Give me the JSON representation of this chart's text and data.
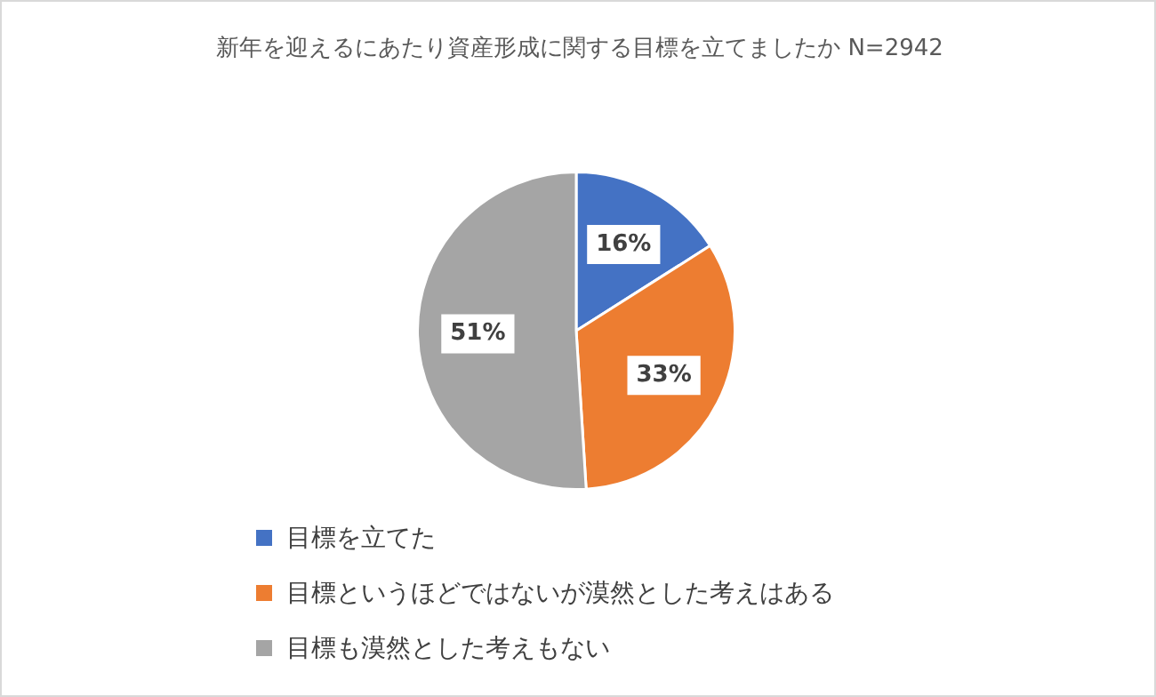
{
  "chart_data": {
    "type": "pie",
    "title": "新年を迎えるにあたり資産形成に関する目標を立てましたか N=2942",
    "categories": [
      "目標を立てた",
      "目標というほどではないが漠然とした考えはある",
      "目標も漠然とした考えもない"
    ],
    "values": [
      16,
      33,
      51
    ],
    "colors": [
      "#4472c4",
      "#ed7d31",
      "#a5a5a5"
    ],
    "value_labels": [
      "16%",
      "33%",
      "51%"
    ],
    "legend": "bottom"
  }
}
